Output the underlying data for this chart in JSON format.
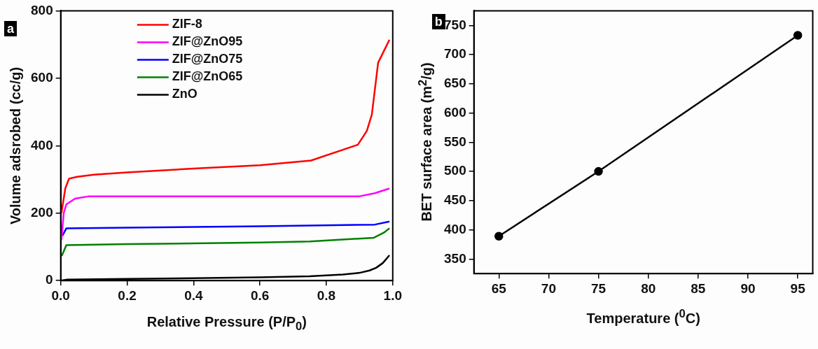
{
  "chart_data": [
    {
      "type": "line",
      "xlabel": "Relative Pressure (P/P$_{0}$)",
      "ylabel": "Volume adsrobed (cc/g)",
      "annotations": [
        "a"
      ],
      "xlim": [
        0,
        1
      ],
      "ylim": [
        0,
        800
      ],
      "xticks": [
        {
          "value": 0,
          "label": "0.0"
        },
        {
          "value": 0.2,
          "label": "0.2"
        },
        {
          "value": 0.4,
          "label": "0.4"
        },
        {
          "value": 0.6,
          "label": "0.6"
        },
        {
          "value": 0.8,
          "label": "0.8"
        },
        {
          "value": 1,
          "label": "1.0"
        }
      ],
      "yticks": [
        0,
        200,
        400,
        600,
        800
      ],
      "grid": false,
      "legend": "top",
      "marker": "none",
      "line_style": "solid",
      "series": [
        {
          "name": "ZIF-8",
          "color": "#ff0000",
          "x": [
            0.002,
            0.014,
            0.025,
            0.05,
            0.1,
            0.2,
            0.4,
            0.6,
            0.754,
            0.895,
            0.922,
            0.937,
            0.956,
            0.99
          ],
          "values": [
            200,
            274,
            302,
            308,
            314,
            321,
            332,
            342,
            356,
            403,
            444,
            492,
            646,
            714
          ]
        },
        {
          "name": "ZIF@ZnO95",
          "color": "#ff00ff",
          "x": [
            0.002,
            0.009,
            0.017,
            0.043,
            0.085,
            0.2,
            0.6,
            0.9,
            0.946,
            0.99
          ],
          "values": [
            120,
            200,
            226,
            243,
            250,
            250,
            250,
            250,
            259,
            273
          ]
        },
        {
          "name": "ZIF@ZnO75",
          "color": "#0000ff",
          "x": [
            0.005,
            0.017,
            0.2,
            0.6,
            0.946,
            0.99
          ],
          "values": [
            133,
            155,
            157,
            161,
            166,
            175
          ]
        },
        {
          "name": "ZIF@ZnO65",
          "color": "#008000",
          "x": [
            0.003,
            0.017,
            0.2,
            0.6,
            0.75,
            0.943,
            0.973,
            0.99
          ],
          "values": [
            73,
            105,
            108,
            113,
            116,
            127,
            142,
            155
          ]
        },
        {
          "name": "ZnO",
          "color": "#000000",
          "x": [
            0,
            0.02,
            0.2,
            0.4,
            0.6,
            0.75,
            0.85,
            0.9,
            0.93,
            0.95,
            0.97,
            0.99
          ],
          "values": [
            0,
            3,
            5,
            7,
            10,
            13,
            18,
            23,
            30,
            38,
            52,
            75
          ]
        }
      ]
    },
    {
      "type": "line",
      "xlabel": "Temperature ($^{0}$C)",
      "ylabel": "BET surface area (m$^{2}$/g)",
      "annotations": [
        "b"
      ],
      "xlim": [
        62.5,
        96.5
      ],
      "ylim": [
        325,
        775
      ],
      "xticks": [
        65,
        70,
        75,
        80,
        85,
        90,
        95
      ],
      "yticks": [
        350,
        400,
        450,
        500,
        550,
        600,
        650,
        700,
        750
      ],
      "grid": false,
      "marker": "circle",
      "line_style": "solid",
      "series": [
        {
          "color": "#000000",
          "x": [
            65,
            75,
            95
          ],
          "values": [
            389,
            500,
            733
          ]
        }
      ]
    }
  ]
}
